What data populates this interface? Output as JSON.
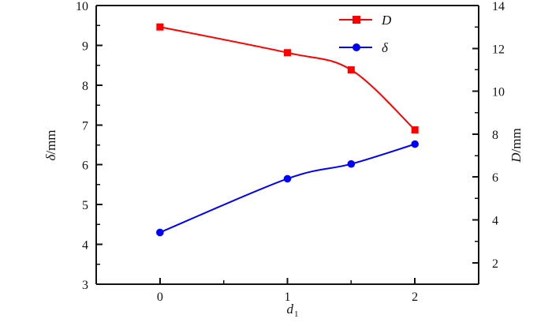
{
  "chart_data": {
    "type": "line",
    "title": "",
    "x": [
      0,
      1,
      1.5,
      2
    ],
    "xlabel_main": "d",
    "xlabel_sub": "1",
    "xlim": [
      -0.5,
      2.5
    ],
    "xticks": [
      0,
      1,
      2
    ],
    "xtick_labels": [
      "0",
      "1",
      "2"
    ],
    "y_left": {
      "label_symbol": "δ",
      "label_unit": "/mm",
      "ylim": [
        3,
        10
      ],
      "ticks": [
        3,
        4,
        5,
        6,
        7,
        8,
        9,
        10
      ],
      "tick_labels": [
        "3",
        "4",
        "5",
        "6",
        "7",
        "8",
        "9",
        "10"
      ]
    },
    "y_right": {
      "label_symbol": "D",
      "label_unit": "/mm",
      "ylim": [
        1,
        14
      ],
      "ticks": [
        2,
        4,
        6,
        8,
        10,
        12,
        14
      ],
      "tick_labels": [
        "2",
        "4",
        "6",
        "8",
        "10",
        "12",
        "14"
      ]
    },
    "series": [
      {
        "name": "D",
        "axis": "right",
        "marker": "square",
        "color": "#ff0000",
        "values": [
          13.0,
          11.8,
          11.0,
          8.2
        ]
      },
      {
        "name": "δ",
        "axis": "left",
        "marker": "circle",
        "color": "#0000ff",
        "values": [
          4.3,
          5.65,
          6.02,
          6.52
        ]
      }
    ],
    "legend_position": "top-right",
    "grid": false
  }
}
